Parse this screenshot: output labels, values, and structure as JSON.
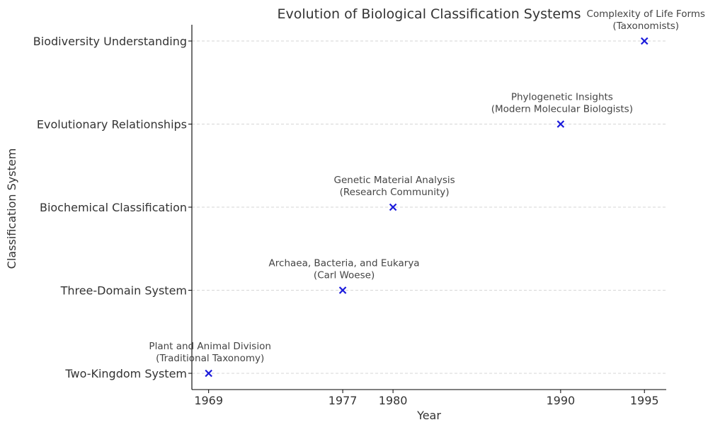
{
  "chart_data": {
    "type": "scatter",
    "title": "Evolution of Biological Classification Systems",
    "xlabel": "Year",
    "ylabel": "Classification System",
    "x_ticks": [
      1969,
      1977,
      1980,
      1990,
      1995
    ],
    "categories": [
      "Two-Kingdom System",
      "Three-Domain System",
      "Biochemical Classification",
      "Evolutionary Relationships",
      "Biodiversity Understanding"
    ],
    "grid": "horizontal dashed",
    "marker": "x",
    "marker_color": "#1a1adb",
    "points": [
      {
        "x": 1969,
        "y": "Two-Kingdom System",
        "annotation": [
          "Plant and Animal Division",
          "(Traditional Taxonomy)"
        ]
      },
      {
        "x": 1977,
        "y": "Three-Domain System",
        "annotation": [
          "Archaea, Bacteria, and Eukarya",
          "(Carl Woese)"
        ]
      },
      {
        "x": 1980,
        "y": "Biochemical Classification",
        "annotation": [
          "Genetic Material Analysis",
          "(Research Community)"
        ]
      },
      {
        "x": 1990,
        "y": "Evolutionary Relationships",
        "annotation": [
          "Phylogenetic Insights",
          "(Modern Molecular Biologists)"
        ]
      },
      {
        "x": 1995,
        "y": "Biodiversity Understanding",
        "annotation": [
          "Complexity of Life Forms",
          "(Taxonomists)"
        ]
      }
    ]
  }
}
